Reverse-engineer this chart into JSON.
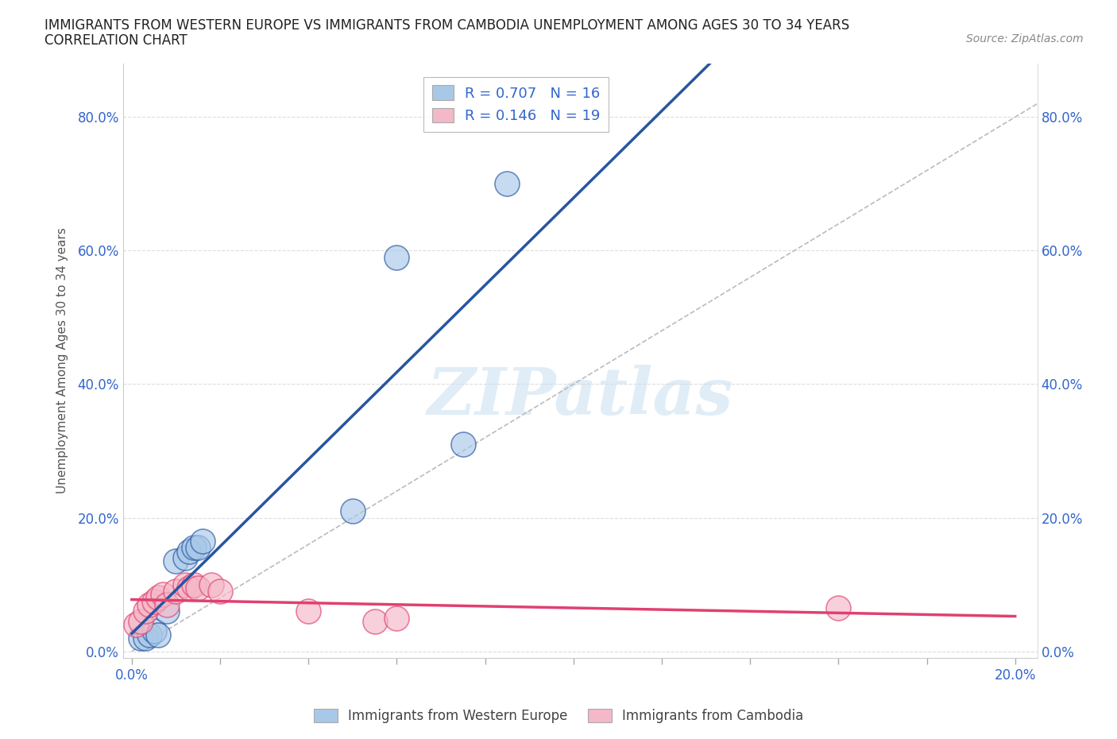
{
  "title_line1": "IMMIGRANTS FROM WESTERN EUROPE VS IMMIGRANTS FROM CAMBODIA UNEMPLOYMENT AMONG AGES 30 TO 34 YEARS",
  "title_line2": "CORRELATION CHART",
  "source_text": "Source: ZipAtlas.com",
  "ylabel": "Unemployment Among Ages 30 to 34 years",
  "xlim": [
    -0.002,
    0.205
  ],
  "ylim": [
    -0.01,
    0.88
  ],
  "xticks": [
    0.0,
    0.02,
    0.04,
    0.06,
    0.08,
    0.1,
    0.12,
    0.14,
    0.16,
    0.18,
    0.2
  ],
  "yticks": [
    0.0,
    0.2,
    0.4,
    0.6,
    0.8
  ],
  "ytick_labels": [
    "0.0%",
    "20.0%",
    "40.0%",
    "60.0%",
    "80.0%"
  ],
  "xtick_labels": [
    "0.0%",
    "",
    "",
    "",
    "",
    "",
    "",
    "",
    "",
    "",
    "20.0%"
  ],
  "blue_color": "#a8c8e8",
  "pink_color": "#f4b8c8",
  "blue_line_color": "#2855a0",
  "pink_line_color": "#e04070",
  "r_blue": 0.707,
  "n_blue": 16,
  "r_pink": 0.146,
  "n_pink": 19,
  "legend_label_blue": "Immigrants from Western Europe",
  "legend_label_pink": "Immigrants from Cambodia",
  "blue_scatter_x": [
    0.002,
    0.003,
    0.004,
    0.005,
    0.006,
    0.008,
    0.01,
    0.012,
    0.013,
    0.014,
    0.015,
    0.016,
    0.05,
    0.06,
    0.075,
    0.085
  ],
  "blue_scatter_y": [
    0.02,
    0.02,
    0.025,
    0.03,
    0.025,
    0.06,
    0.135,
    0.14,
    0.15,
    0.155,
    0.155,
    0.165,
    0.21,
    0.59,
    0.31,
    0.7
  ],
  "pink_scatter_x": [
    0.001,
    0.002,
    0.003,
    0.004,
    0.005,
    0.006,
    0.007,
    0.008,
    0.01,
    0.012,
    0.013,
    0.014,
    0.015,
    0.018,
    0.02,
    0.04,
    0.055,
    0.06,
    0.16
  ],
  "pink_scatter_y": [
    0.04,
    0.045,
    0.06,
    0.07,
    0.075,
    0.08,
    0.085,
    0.07,
    0.09,
    0.1,
    0.095,
    0.1,
    0.095,
    0.1,
    0.09,
    0.06,
    0.045,
    0.05,
    0.065
  ],
  "watermark_text": "ZIPatlas",
  "background_color": "#ffffff",
  "grid_color": "#dddddd",
  "grid_style": "--",
  "ref_line_color": "#bbbbbb"
}
